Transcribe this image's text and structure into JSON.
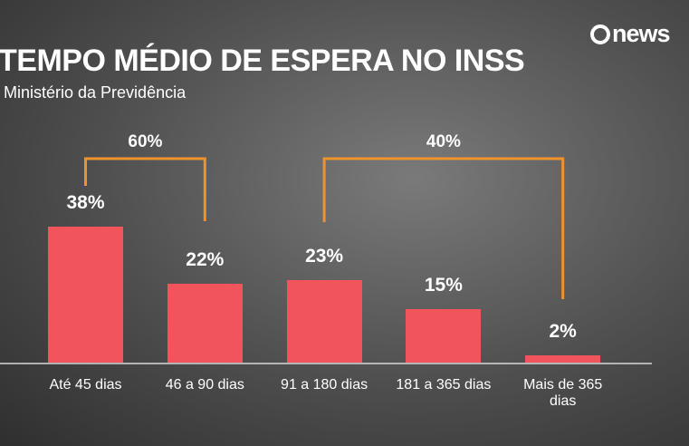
{
  "chart_data": {
    "type": "bar",
    "title": "TEMPO MÉDIO DE ESPERA NO INSS",
    "subtitle": "Ministério da Previdência",
    "logo": "news",
    "categories": [
      "Até 45 dias",
      "46 a 90 dias",
      "91 a 180 dias",
      "181 a 365 dias",
      "Mais de 365 dias"
    ],
    "values": [
      38,
      22,
      23,
      15,
      2
    ],
    "value_labels": [
      "38%",
      "22%",
      "23%",
      "15%",
      "2%"
    ],
    "color": "#f2545b",
    "brackets": [
      {
        "value": 60,
        "label": "60%"
      },
      {
        "value": 40,
        "label": "40%"
      }
    ],
    "bracket_color": "#f0922e"
  }
}
